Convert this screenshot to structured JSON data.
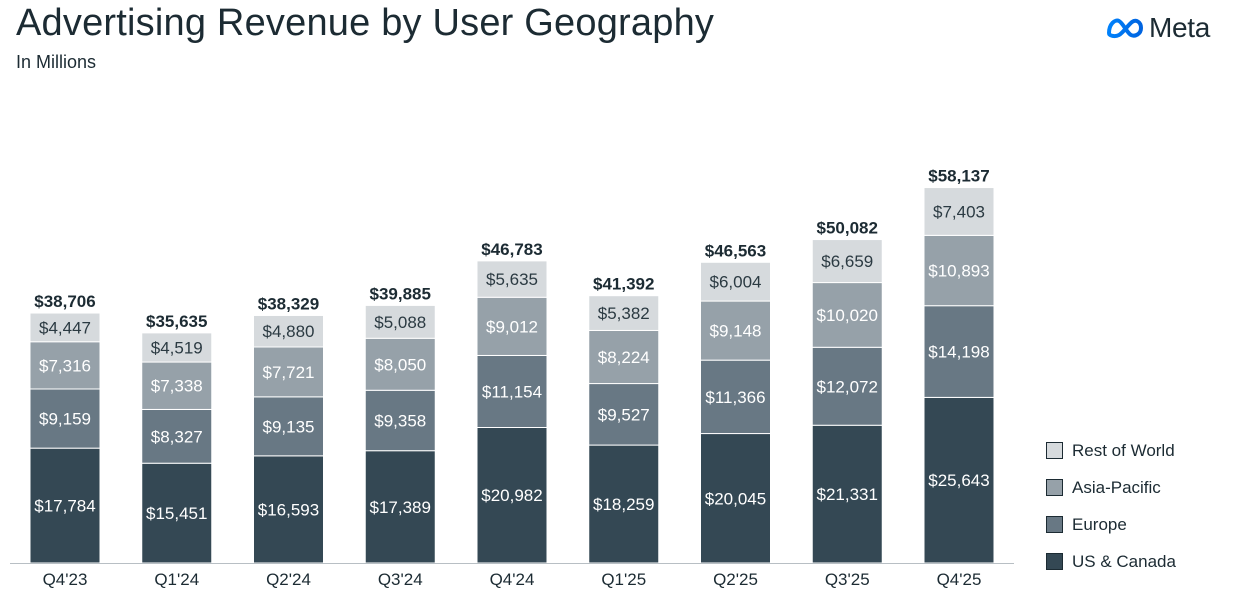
{
  "header": {
    "title": "Advertising Revenue by User Geography",
    "subtitle": "In Millions"
  },
  "brand": {
    "name": "Meta",
    "icon": "meta-infinity-icon",
    "colors": [
      "#0081fb",
      "#0064e0"
    ]
  },
  "legend": [
    {
      "label": "Rest of World",
      "color": "#d6dadd"
    },
    {
      "label": "Asia-Pacific",
      "color": "#96a1a9"
    },
    {
      "label": "Europe",
      "color": "#687884"
    },
    {
      "label": "US & Canada",
      "color": "#344854"
    }
  ],
  "chart_data": {
    "type": "bar",
    "stacked": true,
    "title": "Advertising Revenue by User Geography",
    "subtitle": "In Millions",
    "categories": [
      "Q4'23",
      "Q1'24",
      "Q2'24",
      "Q3'24",
      "Q4'24",
      "Q1'25",
      "Q2'25",
      "Q3'25",
      "Q4'25"
    ],
    "series": [
      {
        "name": "US & Canada",
        "color": "#344854",
        "values": [
          17784,
          15451,
          16593,
          17389,
          20982,
          18259,
          20045,
          21331,
          25643
        ],
        "labels": [
          "$17,784",
          "$15,451",
          "$16,593",
          "$17,389",
          "$20,982",
          "$18,259",
          "$20,045",
          "$21,331",
          "$25,643"
        ]
      },
      {
        "name": "Europe",
        "color": "#687884",
        "values": [
          9159,
          8327,
          9135,
          9358,
          11154,
          9527,
          11366,
          12072,
          14198
        ],
        "labels": [
          "$9,159",
          "$8,327",
          "$9,135",
          "$9,358",
          "$11,154",
          "$9,527",
          "$11,366",
          "$12,072",
          "$14,198"
        ]
      },
      {
        "name": "Asia-Pacific",
        "color": "#96a1a9",
        "values": [
          7316,
          7338,
          7721,
          8050,
          9012,
          8224,
          9148,
          10020,
          10893
        ],
        "labels": [
          "$7,316",
          "$7,338",
          "$7,721",
          "$8,050",
          "$9,012",
          "$8,224",
          "$9,148",
          "$10,020",
          "$10,893"
        ]
      },
      {
        "name": "Rest of World",
        "color": "#d6dadd",
        "values": [
          4447,
          4519,
          4880,
          5088,
          5635,
          5382,
          6004,
          6659,
          7403
        ],
        "labels": [
          "$4,447",
          "$4,519",
          "$4,880",
          "$5,088",
          "$5,635",
          "$5,382",
          "$6,004",
          "$6,659",
          "$7,403"
        ]
      }
    ],
    "totals": [
      38706,
      35635,
      38329,
      39885,
      46783,
      41392,
      46563,
      50082,
      58137
    ],
    "total_labels": [
      "$38,706",
      "$35,635",
      "$38,329",
      "$39,885",
      "$46,783",
      "$41,392",
      "$46,563",
      "$50,082",
      "$58,137"
    ],
    "legend_position": "right",
    "grid": false,
    "ylim": [
      0,
      60000
    ]
  }
}
